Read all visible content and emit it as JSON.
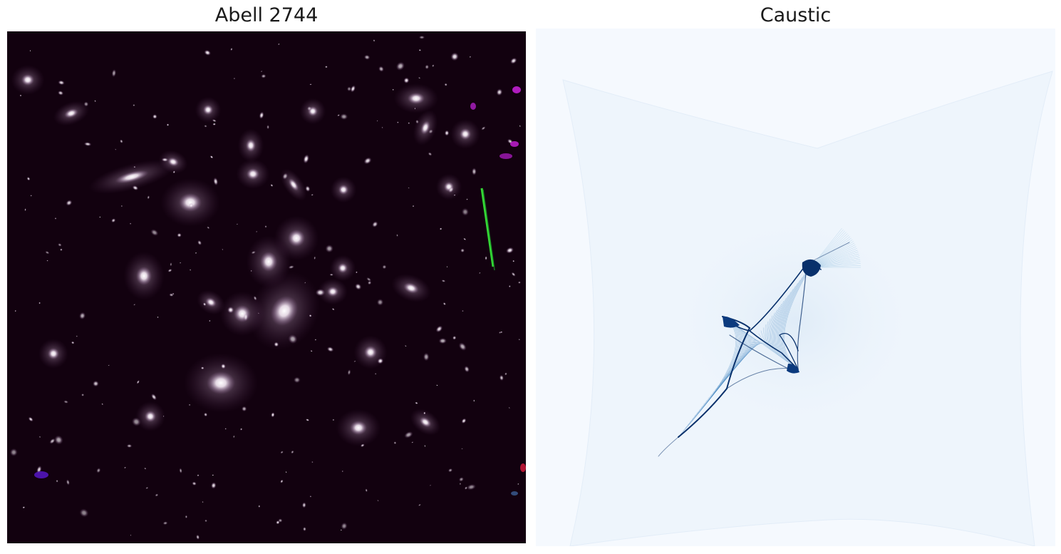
{
  "panels": {
    "left": {
      "title": "Abell 2744",
      "icon": "galaxy-cluster-image"
    },
    "right": {
      "title": "Caustic",
      "icon": "caustic-map-image"
    }
  },
  "colors": {
    "sky_background": "#12010f",
    "galaxy_core": "#ffffff",
    "galaxy_halo": "#d9c2dc",
    "artifact_green": "#3cff3c",
    "artifact_magenta": "#c21fd1",
    "caustic_background": "#f5f9fe",
    "caustic_light": "#c6dbef",
    "caustic_dark": "#08306b"
  }
}
